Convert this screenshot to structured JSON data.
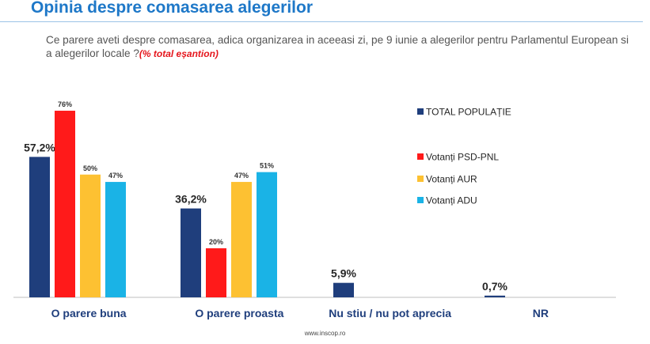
{
  "header": {
    "title": "Opinia despre comasarea alegerilor",
    "question": "Ce parere aveti despre comasarea, adica organizarea in aceeasi zi, pe 9 iunie a alegerilor pentru Parlamentul European si a alegerilor locale ?",
    "question_note": "(% total eșantion)"
  },
  "footer": {
    "source": "www.inscop.ro"
  },
  "chart_data": {
    "type": "bar",
    "title": "",
    "xlabel": "",
    "ylabel": "",
    "ylim": [
      0,
      80
    ],
    "grid": false,
    "legend_position": "right",
    "categories": [
      "O parere buna",
      "O parere proasta",
      "Nu stiu / nu pot aprecia",
      "NR"
    ],
    "series": [
      {
        "name": "TOTAL POPULAȚIE",
        "color": "#1f3e7c",
        "values": [
          57.2,
          36.2,
          5.9,
          0.7
        ],
        "labels": [
          "57,2%",
          "36,2%",
          "5,9%",
          "0,7%"
        ]
      },
      {
        "name": "Votanți PSD-PNL",
        "color": "#ff1a1a",
        "values": [
          76,
          20,
          null,
          null
        ],
        "labels": [
          "76%",
          "20%",
          "",
          ""
        ]
      },
      {
        "name": "Votanți AUR",
        "color": "#fdc132",
        "values": [
          50,
          47,
          null,
          null
        ],
        "labels": [
          "50%",
          "47%",
          "",
          ""
        ]
      },
      {
        "name": "Votanți ADU",
        "color": "#1ab3e6",
        "values": [
          47,
          51,
          null,
          null
        ],
        "labels": [
          "47%",
          "51%",
          "",
          ""
        ]
      }
    ]
  }
}
